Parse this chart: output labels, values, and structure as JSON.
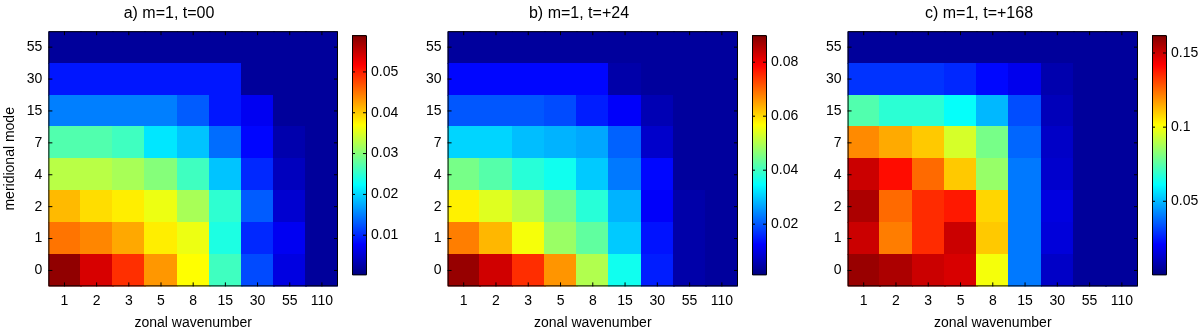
{
  "chart_data": [
    {
      "type": "heatmap",
      "title": "a) m=1, t=00",
      "xlabel": "zonal wavenumber",
      "ylabel": "meridional mode",
      "categories": [
        "1",
        "2",
        "3",
        "5",
        "8",
        "15",
        "30",
        "55",
        "110"
      ],
      "y_categories": [
        "55",
        "30",
        "15",
        "7",
        "4",
        "2",
        "1",
        "0"
      ],
      "cells": [
        [
          0.002,
          0.002,
          0.002,
          0.002,
          0.002,
          0.002,
          0.002,
          0.002,
          0.002
        ],
        [
          0.009,
          0.009,
          0.009,
          0.009,
          0.009,
          0.009,
          0.002,
          0.002,
          0.002
        ],
        [
          0.015,
          0.015,
          0.015,
          0.015,
          0.013,
          0.009,
          0.007,
          0.002,
          0.002
        ],
        [
          0.027,
          0.027,
          0.026,
          0.021,
          0.019,
          0.014,
          0.008,
          0.003,
          0.002
        ],
        [
          0.033,
          0.033,
          0.032,
          0.03,
          0.026,
          0.019,
          0.01,
          0.004,
          0.002
        ],
        [
          0.041,
          0.039,
          0.038,
          0.036,
          0.032,
          0.025,
          0.013,
          0.005,
          0.002
        ],
        [
          0.045,
          0.044,
          0.042,
          0.038,
          0.036,
          0.024,
          0.01,
          0.007,
          0.002
        ],
        [
          0.058,
          0.054,
          0.049,
          0.043,
          0.037,
          0.026,
          0.012,
          0.006,
          0.002
        ]
      ],
      "clim": [
        0.0004,
        0.059
      ],
      "cticks": [
        0.01,
        0.02,
        0.03,
        0.04,
        0.05
      ]
    },
    {
      "type": "heatmap",
      "title": "b) m=1, t=+24",
      "xlabel": "zonal wavenumber",
      "categories": [
        "1",
        "2",
        "3",
        "5",
        "8",
        "15",
        "30",
        "55",
        "110"
      ],
      "y_categories": [
        "55",
        "30",
        "15",
        "7",
        "4",
        "2",
        "1",
        "0"
      ],
      "cells": [
        [
          0.004,
          0.004,
          0.004,
          0.004,
          0.004,
          0.004,
          0.004,
          0.004,
          0.004
        ],
        [
          0.013,
          0.013,
          0.013,
          0.013,
          0.013,
          0.005,
          0.004,
          0.004,
          0.004
        ],
        [
          0.02,
          0.02,
          0.02,
          0.019,
          0.015,
          0.012,
          0.006,
          0.004,
          0.004
        ],
        [
          0.031,
          0.031,
          0.029,
          0.028,
          0.027,
          0.021,
          0.008,
          0.004,
          0.004
        ],
        [
          0.045,
          0.042,
          0.038,
          0.036,
          0.03,
          0.023,
          0.013,
          0.004,
          0.004
        ],
        [
          0.058,
          0.054,
          0.051,
          0.045,
          0.038,
          0.028,
          0.012,
          0.005,
          0.004
        ],
        [
          0.068,
          0.063,
          0.056,
          0.048,
          0.043,
          0.03,
          0.014,
          0.005,
          0.004
        ],
        [
          0.088,
          0.083,
          0.075,
          0.066,
          0.05,
          0.036,
          0.015,
          0.005,
          0.004
        ]
      ],
      "clim": [
        0.0014,
        0.09
      ],
      "cticks": [
        0.02,
        0.04,
        0.06,
        0.08
      ]
    },
    {
      "type": "heatmap",
      "title": "c) m=1, t=+168",
      "xlabel": "zonal wavenumber",
      "categories": [
        "1",
        "2",
        "3",
        "5",
        "8",
        "15",
        "30",
        "55",
        "110"
      ],
      "y_categories": [
        "55",
        "30",
        "15",
        "7",
        "4",
        "2",
        "1",
        "0"
      ],
      "cells": [
        [
          0.005,
          0.005,
          0.005,
          0.005,
          0.005,
          0.005,
          0.005,
          0.005,
          0.005
        ],
        [
          0.029,
          0.029,
          0.029,
          0.027,
          0.022,
          0.018,
          0.008,
          0.005,
          0.005
        ],
        [
          0.074,
          0.068,
          0.068,
          0.062,
          0.05,
          0.033,
          0.01,
          0.005,
          0.005
        ],
        [
          0.12,
          0.115,
          0.11,
          0.095,
          0.08,
          0.037,
          0.012,
          0.005,
          0.005
        ],
        [
          0.15,
          0.14,
          0.125,
          0.11,
          0.085,
          0.04,
          0.013,
          0.005,
          0.005
        ],
        [
          0.155,
          0.125,
          0.135,
          0.138,
          0.108,
          0.04,
          0.016,
          0.005,
          0.005
        ],
        [
          0.15,
          0.122,
          0.135,
          0.15,
          0.11,
          0.04,
          0.015,
          0.005,
          0.005
        ],
        [
          0.158,
          0.155,
          0.15,
          0.148,
          0.1,
          0.04,
          0.012,
          0.005,
          0.005
        ]
      ],
      "clim": [
        0.0007,
        0.162
      ],
      "cticks": [
        0.05,
        0.1,
        0.15
      ]
    }
  ]
}
